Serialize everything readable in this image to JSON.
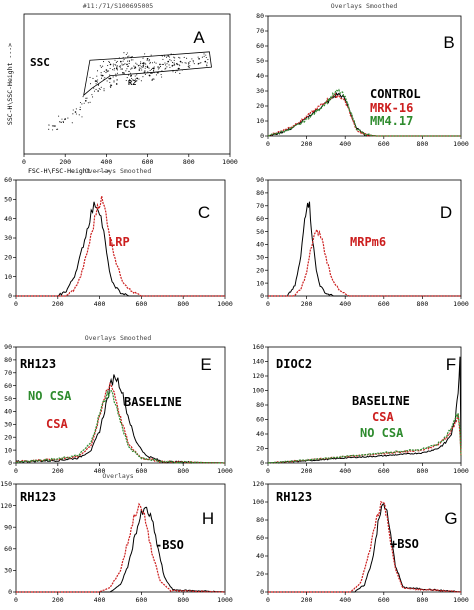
{
  "figure": {
    "background": "#ffffff"
  },
  "colors": {
    "black": "#000000",
    "red": "#cc1f1f",
    "green": "#2e8b2e"
  },
  "chart_data": [
    {
      "id": "A",
      "type": "scatter",
      "letter": "A",
      "header": "#11:/71/S100695005",
      "xlabel": "FSC-H\\FSC-Height --->",
      "ylabel": "SSC-H\\SSC-Height --->",
      "xlim": [
        0,
        1000
      ],
      "ylim": [
        0,
        1000
      ],
      "xticks": [
        "0",
        "200",
        "400",
        "600",
        "800",
        "1000"
      ],
      "yticks": [],
      "annotations": [
        {
          "text": "SSC",
          "color": "#000000"
        },
        {
          "text": "FCS",
          "color": "#000000"
        },
        {
          "text": "R2",
          "color": "#000000"
        }
      ],
      "gate": [
        [
          290,
          420
        ],
        [
          320,
          670
        ],
        [
          540,
          690
        ],
        [
          900,
          730
        ],
        [
          910,
          620
        ],
        [
          600,
          580
        ],
        [
          420,
          560
        ],
        [
          330,
          470
        ]
      ],
      "points": [
        [
          350,
          520
        ],
        [
          380,
          560
        ],
        [
          400,
          600
        ],
        [
          420,
          540
        ],
        [
          450,
          610
        ],
        [
          480,
          580
        ],
        [
          500,
          640
        ],
        [
          520,
          560
        ],
        [
          540,
          620
        ],
        [
          560,
          600
        ],
        [
          580,
          650
        ],
        [
          600,
          620
        ],
        [
          630,
          610
        ],
        [
          660,
          640
        ],
        [
          700,
          660
        ],
        [
          720,
          630
        ],
        [
          760,
          660
        ],
        [
          800,
          650
        ],
        [
          850,
          680
        ],
        [
          880,
          660
        ],
        [
          450,
          500
        ],
        [
          550,
          540
        ],
        [
          650,
          580
        ],
        [
          420,
          640
        ],
        [
          520,
          690
        ],
        [
          600,
          680
        ],
        [
          700,
          700
        ],
        [
          300,
          380
        ],
        [
          250,
          300
        ],
        [
          200,
          250
        ],
        [
          150,
          200
        ],
        [
          360,
          450
        ],
        [
          470,
          660
        ],
        [
          610,
          560
        ],
        [
          750,
          610
        ]
      ]
    },
    {
      "id": "B",
      "type": "line",
      "letter": "B",
      "header": "Overlays Smoothed",
      "xlim": [
        0,
        1000
      ],
      "ylim": [
        0,
        80
      ],
      "xticks": [
        "0",
        "200",
        "400",
        "600",
        "800",
        "1000"
      ],
      "yticks": [
        "0",
        "10",
        "20",
        "30",
        "40",
        "50",
        "60",
        "70",
        "80"
      ],
      "annotations": [
        {
          "text": "CONTROL",
          "color": "#000000"
        },
        {
          "text": "MRK-16",
          "color": "#cc1f1f"
        },
        {
          "text": "MM4.17",
          "color": "#2e8b2e"
        }
      ],
      "series": [
        {
          "color": "#000000",
          "x": [
            0,
            60,
            120,
            180,
            240,
            290,
            330,
            360,
            380,
            400,
            420,
            440,
            460,
            500,
            560,
            650,
            1000
          ],
          "y": [
            0,
            2,
            5,
            10,
            16,
            21,
            25,
            28,
            27,
            24,
            18,
            11,
            5,
            1,
            0,
            0,
            0
          ]
        },
        {
          "color": "#cc1f1f",
          "x": [
            0,
            60,
            120,
            180,
            240,
            290,
            330,
            360,
            380,
            400,
            420,
            440,
            460,
            500,
            560,
            650,
            1000
          ],
          "y": [
            0,
            3,
            6,
            11,
            17,
            22,
            26,
            27,
            26,
            23,
            17,
            10,
            4,
            1,
            0,
            0,
            0
          ]
        },
        {
          "color": "#2e8b2e",
          "x": [
            0,
            60,
            120,
            180,
            240,
            290,
            330,
            360,
            380,
            400,
            420,
            440,
            460,
            500,
            560,
            650,
            1000
          ],
          "y": [
            0,
            2,
            5,
            9,
            15,
            21,
            26,
            30,
            29,
            25,
            19,
            12,
            5,
            1,
            0,
            0,
            0
          ]
        }
      ]
    },
    {
      "id": "C",
      "type": "line",
      "letter": "C",
      "header": "Overlays Smoothed",
      "xlim": [
        0,
        1000
      ],
      "ylim": [
        0,
        70
      ],
      "xticks": [
        "0",
        "200",
        "400",
        "600",
        "800",
        "1000"
      ],
      "yticks": [
        "0",
        "10",
        "20",
        "30",
        "40",
        "50",
        "60"
      ],
      "annotations": [
        {
          "text": "LRP",
          "color": "#cc1f1f"
        }
      ],
      "series": [
        {
          "color": "#000000",
          "x": [
            0,
            200,
            240,
            280,
            310,
            340,
            360,
            380,
            400,
            420,
            440,
            460,
            500,
            540,
            1000
          ],
          "y": [
            0,
            0,
            3,
            12,
            25,
            40,
            50,
            56,
            52,
            38,
            20,
            8,
            2,
            0,
            0
          ]
        },
        {
          "color": "#cc1f1f",
          "x": [
            0,
            240,
            280,
            310,
            340,
            370,
            390,
            410,
            430,
            450,
            480,
            510,
            550,
            600,
            1000
          ],
          "y": [
            0,
            0,
            4,
            12,
            26,
            42,
            55,
            58,
            50,
            36,
            20,
            9,
            3,
            0,
            0
          ]
        }
      ]
    },
    {
      "id": "D",
      "type": "line",
      "letter": "D",
      "header": "",
      "xlim": [
        0,
        1000
      ],
      "ylim": [
        0,
        90
      ],
      "xticks": [
        "0",
        "200",
        "400",
        "600",
        "800",
        "1000"
      ],
      "yticks": [
        "0",
        "10",
        "20",
        "30",
        "40",
        "50",
        "60",
        "70",
        "80",
        "90"
      ],
      "annotations": [
        {
          "text": "MRPm6",
          "color": "#cc1f1f"
        }
      ],
      "series": [
        {
          "color": "#000000",
          "x": [
            0,
            100,
            140,
            170,
            190,
            205,
            215,
            230,
            250,
            270,
            300,
            340,
            1000
          ],
          "y": [
            0,
            0,
            8,
            30,
            60,
            75,
            70,
            45,
            20,
            8,
            2,
            0,
            0
          ]
        },
        {
          "color": "#cc1f1f",
          "x": [
            0,
            130,
            170,
            200,
            220,
            240,
            260,
            280,
            300,
            330,
            370,
            420,
            1000
          ],
          "y": [
            0,
            0,
            5,
            18,
            35,
            47,
            50,
            44,
            30,
            14,
            4,
            0,
            0
          ]
        }
      ]
    },
    {
      "id": "E",
      "type": "line",
      "letter": "E",
      "header": "Overlays Smoothed",
      "xlim": [
        0,
        1000
      ],
      "ylim": [
        0,
        90
      ],
      "xticks": [
        "0",
        "200",
        "400",
        "600",
        "800",
        "1000"
      ],
      "yticks": [
        "0",
        "10",
        "20",
        "30",
        "40",
        "50",
        "60",
        "70",
        "80",
        "90"
      ],
      "annotations": [
        {
          "text": "RH123",
          "color": "#000000"
        },
        {
          "text": "NO CSA",
          "color": "#2e8b2e"
        },
        {
          "text": "BASELINE",
          "color": "#000000"
        },
        {
          "text": "CSA",
          "color": "#cc1f1f"
        }
      ],
      "series": [
        {
          "color": "#000000",
          "x": [
            0,
            200,
            300,
            360,
            400,
            430,
            455,
            475,
            500,
            530,
            570,
            620,
            700,
            1000
          ],
          "y": [
            1,
            2,
            4,
            10,
            25,
            45,
            62,
            68,
            60,
            40,
            18,
            6,
            1,
            0
          ]
        },
        {
          "color": "#cc1f1f",
          "x": [
            0,
            200,
            300,
            360,
            400,
            430,
            450,
            470,
            500,
            540,
            600,
            700,
            1000
          ],
          "y": [
            1,
            3,
            5,
            14,
            35,
            55,
            62,
            55,
            35,
            14,
            4,
            1,
            0
          ]
        },
        {
          "color": "#2e8b2e",
          "x": [
            0,
            200,
            300,
            360,
            400,
            430,
            450,
            470,
            500,
            540,
            600,
            700,
            1000
          ],
          "y": [
            1,
            3,
            6,
            16,
            38,
            52,
            56,
            50,
            32,
            12,
            4,
            1,
            0
          ]
        }
      ]
    },
    {
      "id": "F",
      "type": "line",
      "letter": "F",
      "header": "",
      "xlim": [
        0,
        1000
      ],
      "ylim": [
        0,
        160
      ],
      "xticks": [
        "0",
        "200",
        "400",
        "600",
        "800",
        "1000"
      ],
      "yticks": [
        "0",
        "20",
        "40",
        "60",
        "80",
        "100",
        "120",
        "140",
        "160"
      ],
      "annotations": [
        {
          "text": "DIOC2",
          "color": "#000000"
        },
        {
          "text": "BASELINE",
          "color": "#000000"
        },
        {
          "text": "CSA",
          "color": "#cc1f1f"
        },
        {
          "text": "NO CSA",
          "color": "#2e8b2e"
        }
      ],
      "series": [
        {
          "color": "#000000",
          "x": [
            0,
            200,
            400,
            600,
            800,
            880,
            920,
            950,
            970,
            985,
            995,
            1000
          ],
          "y": [
            0,
            3,
            7,
            10,
            14,
            20,
            28,
            40,
            60,
            95,
            150,
            20
          ]
        },
        {
          "color": "#cc1f1f",
          "x": [
            0,
            200,
            400,
            600,
            800,
            880,
            920,
            950,
            970,
            985,
            995,
            1000
          ],
          "y": [
            0,
            4,
            9,
            13,
            18,
            25,
            34,
            45,
            55,
            65,
            40,
            10
          ]
        },
        {
          "color": "#2e8b2e",
          "x": [
            0,
            200,
            400,
            600,
            800,
            880,
            920,
            950,
            970,
            985,
            995,
            1000
          ],
          "y": [
            0,
            4,
            9,
            14,
            19,
            26,
            36,
            48,
            60,
            70,
            45,
            10
          ]
        }
      ]
    },
    {
      "id": "H",
      "type": "line",
      "letter": "H",
      "header": "Overlays",
      "xlim": [
        0,
        1000
      ],
      "ylim": [
        0,
        150
      ],
      "xticks": [
        "0",
        "200",
        "400",
        "600",
        "800",
        "1000"
      ],
      "yticks": [
        "0",
        "30",
        "60",
        "90",
        "120",
        "150"
      ],
      "annotations": [
        {
          "text": "RH123",
          "color": "#000000"
        },
        {
          "text": "-BSO",
          "color": "#000000"
        }
      ],
      "series": [
        {
          "color": "#000000",
          "x": [
            0,
            450,
            500,
            540,
            570,
            600,
            625,
            650,
            680,
            710,
            750,
            1000
          ],
          "y": [
            0,
            0,
            10,
            40,
            80,
            108,
            115,
            100,
            60,
            20,
            3,
            0
          ]
        },
        {
          "color": "#cc1f1f",
          "x": [
            0,
            400,
            450,
            500,
            540,
            570,
            595,
            620,
            650,
            690,
            740,
            1000
          ],
          "y": [
            0,
            0,
            6,
            30,
            75,
            110,
            118,
            100,
            55,
            15,
            2,
            0
          ]
        }
      ]
    },
    {
      "id": "G",
      "type": "line",
      "letter": "G",
      "header": "",
      "xlim": [
        0,
        1000
      ],
      "ylim": [
        0,
        120
      ],
      "xticks": [
        "0",
        "200",
        "400",
        "600",
        "800",
        "1000"
      ],
      "yticks": [
        "0",
        "20",
        "40",
        "60",
        "80",
        "100",
        "120"
      ],
      "annotations": [
        {
          "text": "RH123",
          "color": "#000000"
        },
        {
          "text": "+BSO",
          "color": "#000000"
        }
      ],
      "series": [
        {
          "color": "#000000",
          "x": [
            0,
            450,
            500,
            540,
            570,
            595,
            610,
            630,
            660,
            700,
            1000
          ],
          "y": [
            0,
            0,
            8,
            35,
            75,
            98,
            95,
            70,
            30,
            5,
            0
          ]
        },
        {
          "color": "#cc1f1f",
          "x": [
            0,
            430,
            480,
            520,
            560,
            585,
            605,
            630,
            660,
            700,
            1000
          ],
          "y": [
            0,
            0,
            10,
            40,
            80,
            100,
            96,
            65,
            25,
            4,
            0
          ]
        }
      ]
    }
  ]
}
